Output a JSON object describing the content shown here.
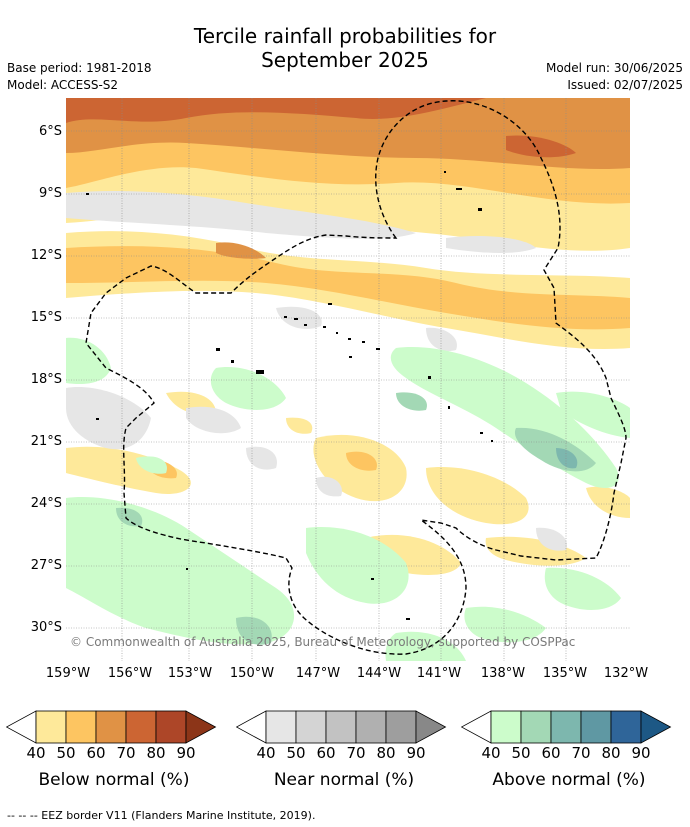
{
  "title": {
    "line1": "Tercile rainfall probabilities for",
    "line2": "September 2025"
  },
  "meta": {
    "base_period": "Base period: 1981-2018",
    "model": "Model: ACCESS-S2",
    "model_run": "Model run: 30/06/2025",
    "issued": "Issued: 02/07/2025"
  },
  "map": {
    "lat_labels": [
      "6°S",
      "9°S",
      "12°S",
      "15°S",
      "18°S",
      "21°S",
      "24°S",
      "27°S",
      "30°S"
    ],
    "lon_labels": [
      "159°W",
      "156°W",
      "153°W",
      "150°W",
      "147°W",
      "144°W",
      "141°W",
      "138°W",
      "135°W",
      "132°W"
    ],
    "copyright": "© Commonwealth of Australia 2025, Bureau of Meteorology, supported by COSPPac"
  },
  "colorbars": [
    {
      "name": "below",
      "title": "Below normal (%)",
      "ticks": [
        "40",
        "50",
        "60",
        "70",
        "80",
        "90"
      ],
      "colors": [
        "#ffffff",
        "#fee99a",
        "#fdc561",
        "#e09245",
        "#cc6533",
        "#ad4628",
        "#8c3518"
      ]
    },
    {
      "name": "near",
      "title": "Near normal (%)",
      "ticks": [
        "40",
        "50",
        "60",
        "70",
        "80",
        "90"
      ],
      "colors": [
        "#ffffff",
        "#e6e6e6",
        "#d4d4d4",
        "#c2c2c2",
        "#b0b0b0",
        "#9e9e9e",
        "#888888"
      ]
    },
    {
      "name": "above",
      "title": "Above normal (%)",
      "ticks": [
        "40",
        "50",
        "60",
        "70",
        "80",
        "90"
      ],
      "colors": [
        "#ffffff",
        "#ccfccb",
        "#a3d8b5",
        "#7db7ae",
        "#5f98a3",
        "#2f6599",
        "#1d5885"
      ]
    }
  ],
  "footer": {
    "eez_note": "--  --  -- EEZ border V11 (Flanders Marine Institute, 2019)."
  }
}
